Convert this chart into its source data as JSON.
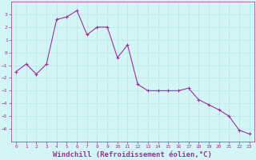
{
  "x": [
    0,
    1,
    2,
    3,
    4,
    5,
    6,
    7,
    8,
    9,
    10,
    11,
    12,
    13,
    14,
    15,
    16,
    17,
    18,
    19,
    20,
    21,
    22,
    23
  ],
  "y": [
    -1.5,
    -0.9,
    -1.7,
    -0.9,
    2.6,
    2.8,
    3.3,
    1.4,
    2.0,
    2.0,
    -0.4,
    0.6,
    -2.5,
    -3.0,
    -3.0,
    -3.0,
    -3.0,
    -2.8,
    -3.7,
    -4.1,
    -4.5,
    -5.0,
    -6.1,
    -6.4
  ],
  "line_color": "#993399",
  "marker": "+",
  "bg_color": "#d4f5f5",
  "grid_color": "#b8e8e8",
  "xlabel": "Windchill (Refroidissement éolien,°C)",
  "xlabel_color": "#993399",
  "tick_color": "#993399",
  "xlim": [
    -0.5,
    23.5
  ],
  "ylim": [
    -7,
    4
  ],
  "yticks": [
    -6,
    -5,
    -4,
    -3,
    -2,
    -1,
    0,
    1,
    2,
    3
  ],
  "xticks": [
    0,
    1,
    2,
    3,
    4,
    5,
    6,
    7,
    8,
    9,
    10,
    11,
    12,
    13,
    14,
    15,
    16,
    17,
    18,
    19,
    20,
    21,
    22,
    23
  ],
  "tick_fontsize": 4.5,
  "xlabel_fontsize": 6.5
}
